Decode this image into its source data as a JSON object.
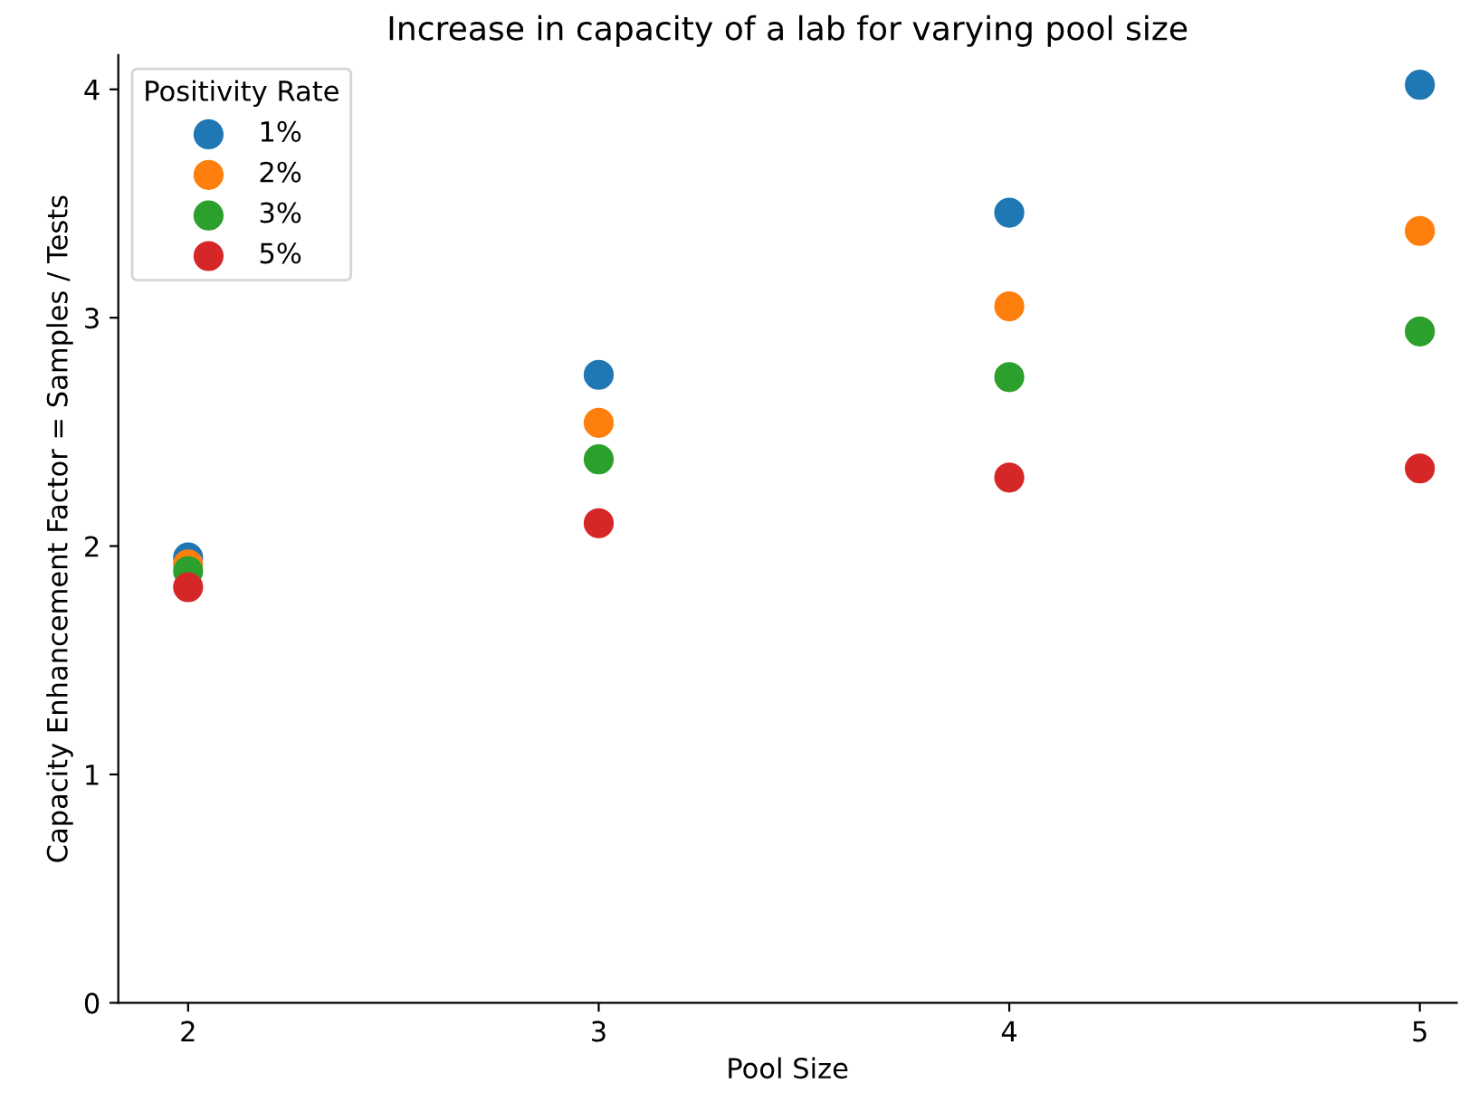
{
  "chart_data": {
    "type": "scatter",
    "title": "Increase in capacity of a lab for varying pool size",
    "xlabel": "Pool Size",
    "ylabel": "Capacity Enhancement Factor = Samples / Tests",
    "legend_title": "Positivity Rate",
    "legend": "top left",
    "marker": "circle",
    "grid": false,
    "x": [
      2,
      3,
      4,
      5
    ],
    "series": [
      {
        "name": "1%",
        "color": "#1f77b4",
        "values": [
          1.95,
          2.75,
          3.46,
          4.02
        ]
      },
      {
        "name": "2%",
        "color": "#ff7f0e",
        "values": [
          1.92,
          2.54,
          3.05,
          3.38
        ]
      },
      {
        "name": "3%",
        "color": "#2ca02c",
        "values": [
          1.89,
          2.38,
          2.74,
          2.94
        ]
      },
      {
        "name": "5%",
        "color": "#d62728",
        "values": [
          1.82,
          2.1,
          2.3,
          2.34
        ]
      }
    ],
    "xlim": [
      1.83,
      5.09
    ],
    "ylim": [
      0,
      4.15
    ],
    "xticks": [
      2,
      3,
      4,
      5
    ],
    "yticks": [
      0,
      1,
      2,
      3,
      4
    ]
  }
}
